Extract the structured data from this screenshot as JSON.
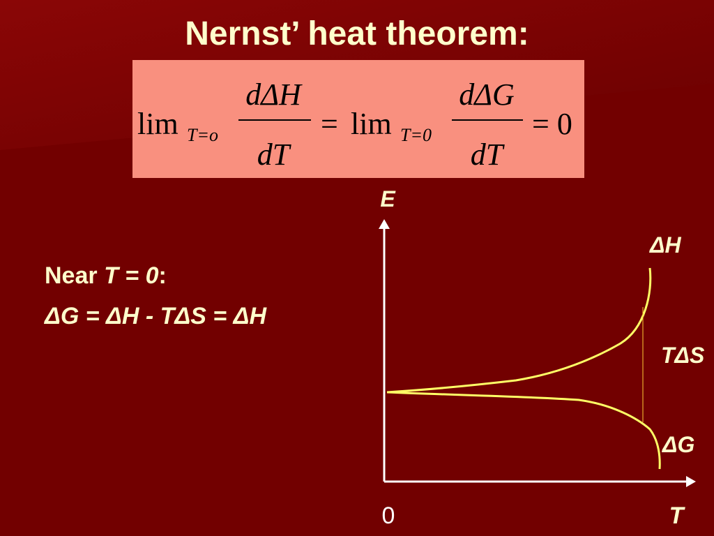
{
  "title": "Nernst’ heat theorem:",
  "formula": {
    "lim1": "lim",
    "sub1": "T=o",
    "num1": "dΔH",
    "den1": "dT",
    "eq1": "=",
    "lim2": "lim",
    "sub2": "T=0",
    "num2": "dΔG",
    "den2": "dT",
    "eq2": "= 0"
  },
  "note": {
    "prefix": "Near",
    "condition": "T = 0",
    "suffix": ":",
    "equation": "ΔG = ΔH - TΔS = ΔH"
  },
  "diagram": {
    "y_axis": "E",
    "x_axis": "T",
    "origin": "0",
    "labels": [
      "ΔH",
      "TΔS",
      "ΔG"
    ]
  }
}
